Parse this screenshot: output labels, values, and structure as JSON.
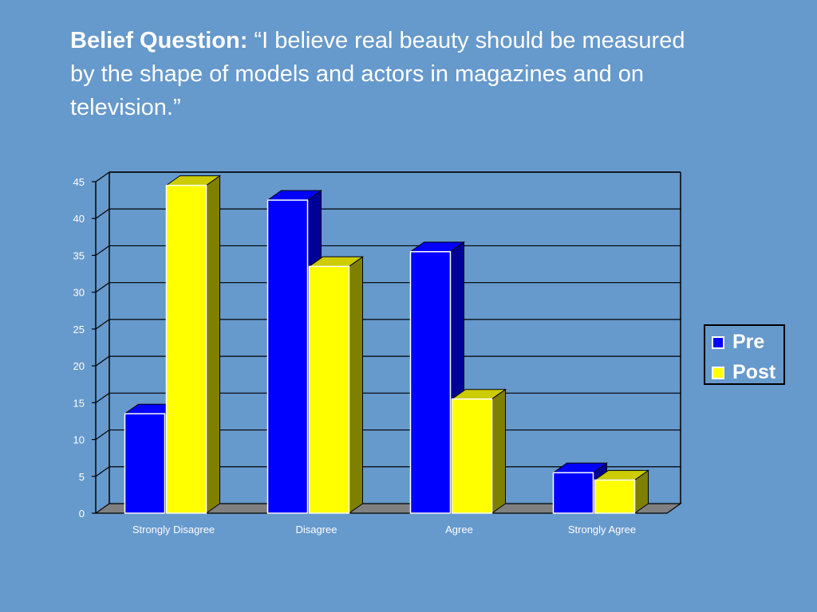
{
  "title": {
    "bold": "Belief Question:",
    "text": " “I believe real beauty should be measured by the shape of models and actors in magazines and on television.”"
  },
  "colors": {
    "background": "#6699cc",
    "pre_front": "#0000ff",
    "pre_side": "#000099",
    "post_front": "#ffff00",
    "post_side": "#808000",
    "floor": "#808080"
  },
  "chart_data": {
    "type": "bar",
    "categories": [
      "Strongly Disagree",
      "Disagree",
      "Agree",
      "Strongly Agree"
    ],
    "series": [
      {
        "name": "Pre",
        "values": [
          13.5,
          42.5,
          35.5,
          5.5
        ]
      },
      {
        "name": "Post",
        "values": [
          44.5,
          33.5,
          15.5,
          4.5
        ]
      }
    ],
    "yticks": [
      "0",
      "5",
      "10",
      "15",
      "20",
      "25",
      "30",
      "35",
      "40",
      "45"
    ],
    "ylim": [
      0,
      45
    ],
    "grid": true,
    "legend": "right"
  }
}
